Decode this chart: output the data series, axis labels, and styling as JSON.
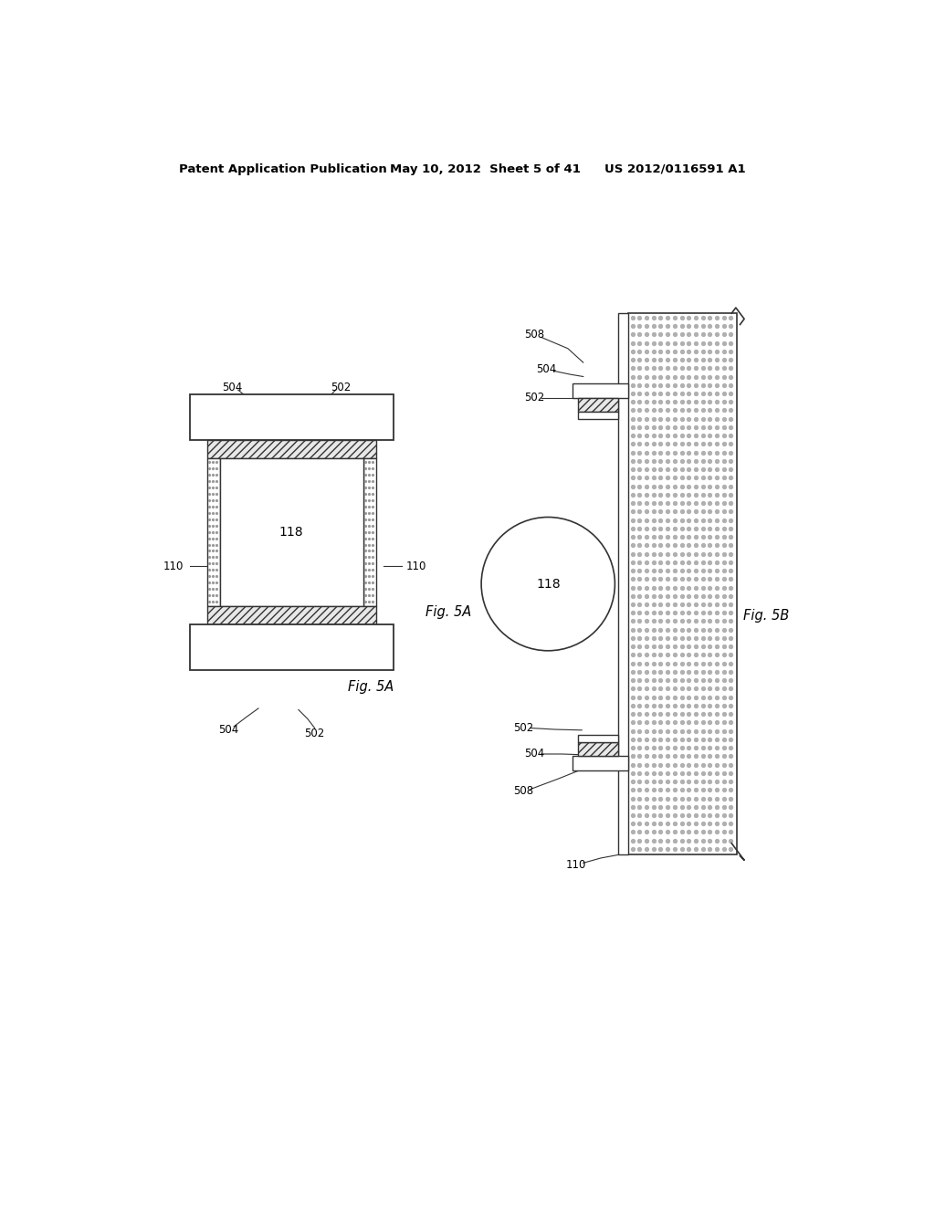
{
  "bg_color": "#ffffff",
  "header_left": "Patent Application Publication",
  "header_mid": "May 10, 2012  Sheet 5 of 41",
  "header_right": "US 2012/0116591 A1",
  "fig5a_label": "Fig. 5A",
  "fig5b_label": "Fig. 5B",
  "line_color": "#333333",
  "hatch_color": "#888888",
  "stipple_color": "#bbbbbb"
}
